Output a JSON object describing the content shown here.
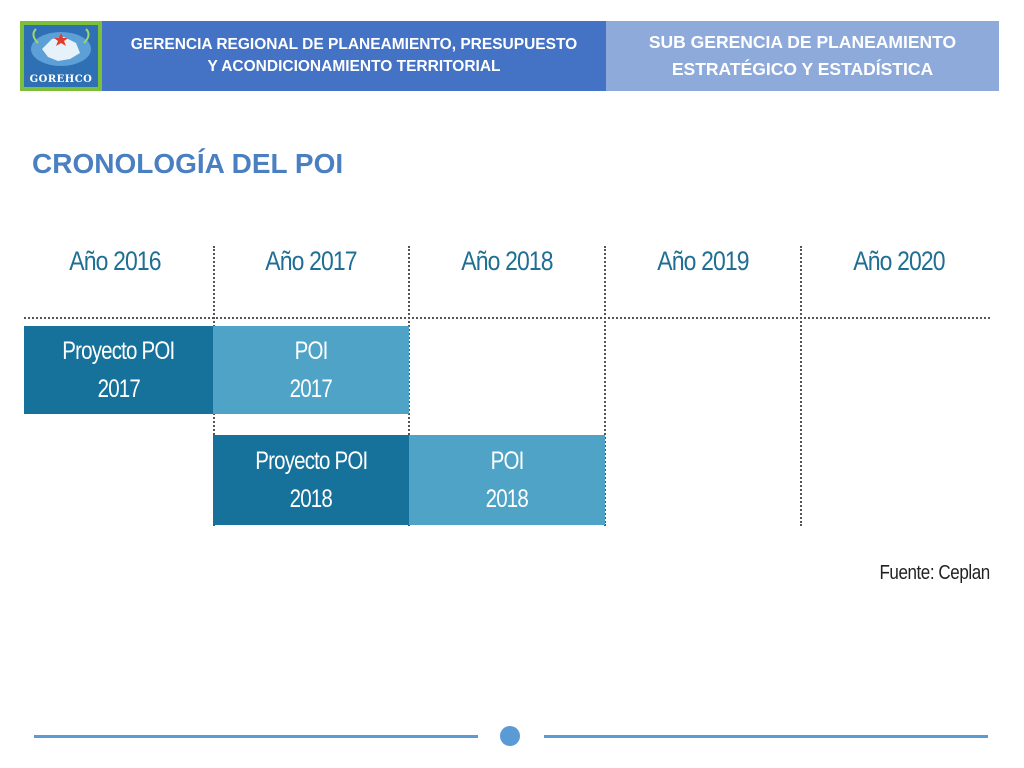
{
  "header": {
    "logo_text": "GOREHCO",
    "left_line1": "GERENCIA REGIONAL DE PLANEAMIENTO, PRESUPUESTO",
    "left_line2": "Y ACONDICIONAMIENTO TERRITORIAL",
    "right_line1": "SUB GERENCIA DE PLANEAMIENTO",
    "right_line2": "ESTRATÉGICO Y ESTADÍSTICA"
  },
  "title": "CRONOLOGÍA DEL POI",
  "timeline": {
    "years": [
      "Año 2016",
      "Año 2017",
      "Año 2018",
      "Año 2019",
      "Año 2020"
    ],
    "rows": [
      [
        {
          "line1": "Proyecto POI",
          "line2": "2017",
          "style": "dark"
        },
        {
          "line1": "POI",
          "line2": "2017",
          "style": "light"
        }
      ],
      [
        {
          "line1": "Proyecto POI",
          "line2": "2018",
          "style": "dark"
        },
        {
          "line1": "POI",
          "line2": "2018",
          "style": "light"
        }
      ]
    ]
  },
  "source": "Fuente: Ceplan",
  "colors": {
    "header_left": "#4472c4",
    "header_right": "#8eaadb",
    "title": "#4a7fc1",
    "bar_dark": "#16719b",
    "bar_light": "#4fa3c7",
    "footer": "#5b9bd5"
  }
}
